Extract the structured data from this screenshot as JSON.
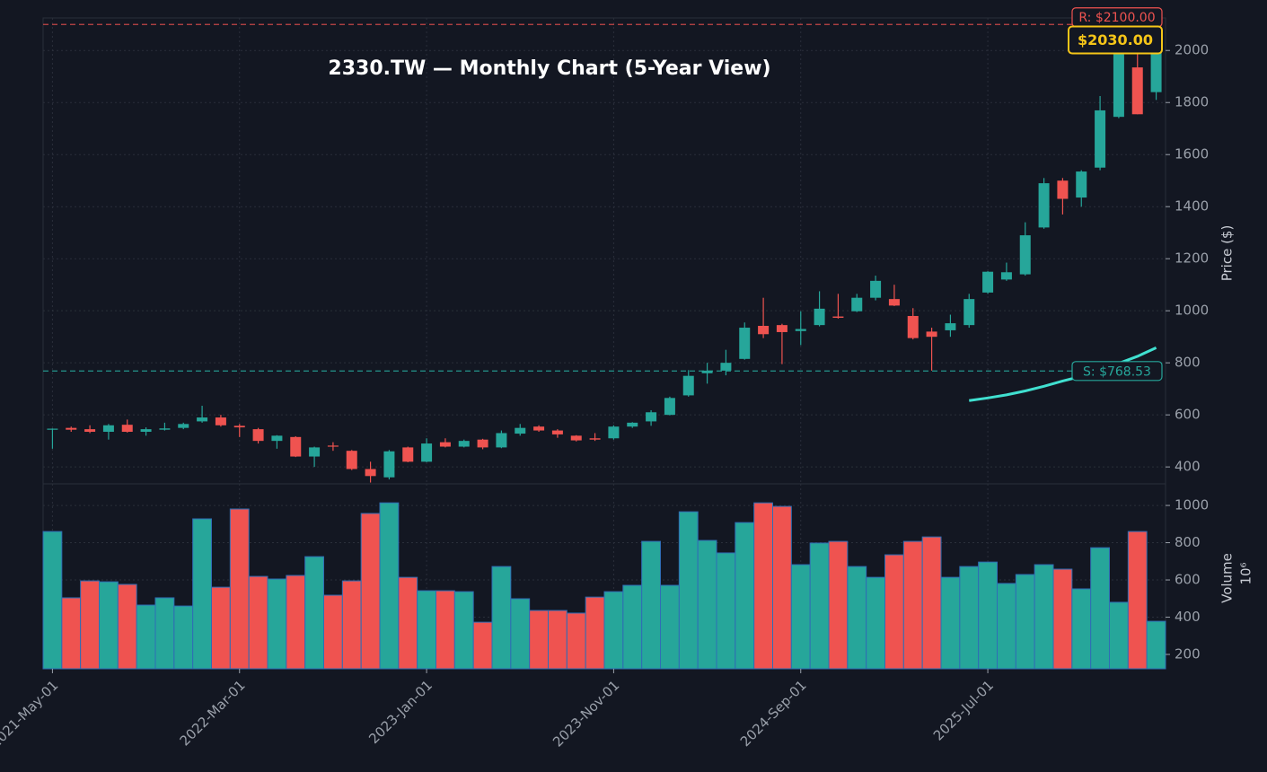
{
  "chart_data": {
    "type": "candlestick",
    "title": "2330.TW — Monthly Chart (5-Year View)",
    "categories": [
      "2021-May-01",
      null,
      null,
      null,
      null,
      null,
      null,
      null,
      null,
      null,
      "2022-Mar-01",
      null,
      null,
      null,
      null,
      null,
      null,
      null,
      null,
      null,
      "2023-Jan-01",
      null,
      null,
      null,
      null,
      null,
      null,
      null,
      null,
      null,
      "2023-Nov-01",
      null,
      null,
      null,
      null,
      null,
      null,
      null,
      null,
      null,
      "2024-Sep-01",
      null,
      null,
      null,
      null,
      null,
      null,
      null,
      null,
      null,
      "2025-Jul-01",
      null,
      null,
      null,
      null,
      null,
      null,
      null,
      null,
      null
    ],
    "open": [
      545,
      550,
      545,
      535,
      562,
      535,
      543,
      550,
      575,
      590,
      558,
      545,
      500,
      515,
      440,
      482,
      462,
      392,
      360,
      475,
      420,
      495,
      478,
      505,
      475,
      528,
      555,
      540,
      520,
      510,
      510,
      555,
      575,
      600,
      675,
      760,
      770,
      815,
      942,
      945,
      922,
      945,
      978,
      998,
      1050,
      1045,
      980,
      920,
      925,
      945,
      1070,
      1120,
      1140,
      1320,
      1500,
      1435,
      1550,
      1745,
      1935,
      1840
    ],
    "high": [
      548,
      555,
      560,
      565,
      582,
      552,
      570,
      570,
      635,
      600,
      565,
      550,
      522,
      518,
      478,
      495,
      465,
      420,
      465,
      478,
      510,
      510,
      505,
      508,
      540,
      565,
      560,
      545,
      522,
      530,
      560,
      572,
      618,
      670,
      772,
      800,
      850,
      955,
      1050,
      950,
      998,
      1075,
      1065,
      1065,
      1135,
      1100,
      1010,
      935,
      985,
      1065,
      1152,
      1185,
      1340,
      1510,
      1510,
      1540,
      1825,
      2060,
      2010,
      2040
    ],
    "low": [
      470,
      535,
      530,
      505,
      532,
      520,
      540,
      545,
      570,
      555,
      515,
      490,
      470,
      438,
      400,
      462,
      388,
      340,
      352,
      418,
      418,
      475,
      475,
      468,
      472,
      520,
      535,
      512,
      498,
      500,
      505,
      550,
      558,
      598,
      670,
      720,
      752,
      812,
      895,
      795,
      868,
      940,
      970,
      995,
      1040,
      1018,
      890,
      770,
      900,
      935,
      1065,
      1115,
      1135,
      1315,
      1370,
      1400,
      1540,
      1740,
      1755,
      1810
    ],
    "close": [
      547,
      543,
      535,
      560,
      535,
      545,
      548,
      565,
      590,
      560,
      552,
      500,
      520,
      440,
      475,
      478,
      392,
      365,
      460,
      420,
      490,
      478,
      500,
      475,
      530,
      550,
      540,
      525,
      502,
      505,
      555,
      570,
      610,
      665,
      750,
      770,
      800,
      935,
      910,
      918,
      930,
      1008,
      973,
      1050,
      1115,
      1020,
      895,
      900,
      952,
      1045,
      1150,
      1148,
      1290,
      1490,
      1430,
      1535,
      1770,
      2040,
      1755,
      2030
    ],
    "up_color": "#26a69a",
    "down_color": "#ef5350",
    "ylim": [
      335,
      2125
    ],
    "yticks": [
      400,
      600,
      800,
      1000,
      1200,
      1400,
      1600,
      1800,
      2000
    ],
    "ylabel": "Price ($)",
    "grid": true,
    "overlay": {
      "color": "#40e0d0",
      "values": [
        null,
        null,
        null,
        null,
        null,
        null,
        null,
        null,
        null,
        null,
        null,
        null,
        null,
        null,
        null,
        null,
        null,
        null,
        null,
        null,
        null,
        null,
        null,
        null,
        null,
        null,
        null,
        null,
        null,
        null,
        null,
        null,
        null,
        null,
        null,
        null,
        null,
        null,
        null,
        null,
        null,
        null,
        null,
        null,
        null,
        null,
        null,
        null,
        null,
        655,
        665,
        677,
        692,
        710,
        730,
        748,
        770,
        798,
        825,
        858
      ]
    },
    "annotations": [
      {
        "label": "R: $2100.00",
        "value": 2100,
        "color": "#ef5350"
      },
      {
        "label": "S: $768.53",
        "value": 768.53,
        "color": "#26a69a"
      },
      {
        "label": "$2030.00",
        "value": 2030,
        "color": "#f5c518"
      }
    ],
    "volume": {
      "values": [
        860,
        504,
        595,
        590,
        576,
        465,
        504,
        460,
        928,
        561,
        981,
        619,
        605,
        624,
        725,
        518,
        595,
        957,
        1014,
        614,
        542,
        542,
        537,
        373,
        672,
        499,
        436,
        436,
        422,
        508,
        537,
        571,
        807,
        571,
        966,
        812,
        745,
        908,
        1014,
        995,
        682,
        798,
        807,
        672,
        614,
        735,
        807,
        831,
        614,
        672,
        696,
        581,
        629,
        682,
        658,
        552,
        773,
        480,
        860,
        378
      ],
      "ylim": [
        123,
        1116
      ],
      "yticks": [
        200,
        400,
        600,
        800,
        1000
      ],
      "ylabel": "Volume",
      "scale_label": "10⁶"
    }
  }
}
